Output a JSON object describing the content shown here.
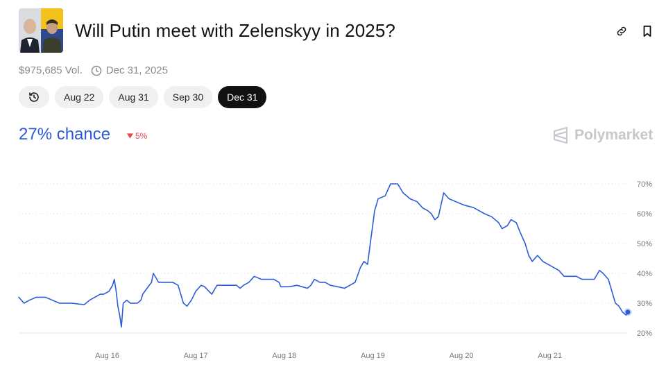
{
  "header": {
    "title": "Will Putin meet with Zelenskyy in 2025?",
    "avatar_icon": "putin-zelenskyy-photo",
    "link_icon": "link-icon",
    "bookmark_icon": "bookmark-icon"
  },
  "meta": {
    "volume": "$975,685 Vol.",
    "end_date": "Dec 31, 2025"
  },
  "tabs": [
    {
      "label": "Aug 22"
    },
    {
      "label": "Aug 31"
    },
    {
      "label": "Sep 30"
    },
    {
      "label": "Dec 31",
      "active": true
    }
  ],
  "summary": {
    "chance": "27% chance",
    "change": "5%",
    "change_direction": "down",
    "brand": "Polymarket"
  },
  "colors": {
    "line": "#2b5bd7",
    "negative": "#e5484d",
    "brand": "#c4c7cc"
  },
  "chart_data": {
    "type": "line",
    "x_ticks": [
      "Aug 16",
      "Aug 17",
      "Aug 18",
      "Aug 19",
      "Aug 20",
      "Aug 21"
    ],
    "x_range": [
      15.0,
      21.88
    ],
    "y_ticks": [
      "20%",
      "30%",
      "40%",
      "50%",
      "60%",
      "70%"
    ],
    "ylim": [
      20,
      70
    ],
    "grid": true,
    "series": [
      {
        "values": [
          [
            15.0,
            32
          ],
          [
            15.06,
            30
          ],
          [
            15.12,
            31
          ],
          [
            15.2,
            32
          ],
          [
            15.3,
            32
          ],
          [
            15.38,
            31
          ],
          [
            15.46,
            30
          ],
          [
            15.6,
            30
          ],
          [
            15.74,
            29.5
          ],
          [
            15.8,
            31
          ],
          [
            15.86,
            32
          ],
          [
            15.92,
            33
          ],
          [
            15.96,
            33
          ],
          [
            16.02,
            34
          ],
          [
            16.06,
            36
          ],
          [
            16.08,
            38
          ],
          [
            16.1,
            34
          ],
          [
            16.12,
            29
          ],
          [
            16.14,
            26
          ],
          [
            16.16,
            22
          ],
          [
            16.18,
            30
          ],
          [
            16.22,
            31
          ],
          [
            16.26,
            30
          ],
          [
            16.34,
            30
          ],
          [
            16.38,
            31
          ],
          [
            16.4,
            33
          ],
          [
            16.45,
            35
          ],
          [
            16.5,
            37
          ],
          [
            16.52,
            40
          ],
          [
            16.58,
            37
          ],
          [
            16.66,
            37
          ],
          [
            16.74,
            37
          ],
          [
            16.8,
            36
          ],
          [
            16.86,
            30
          ],
          [
            16.9,
            29
          ],
          [
            16.95,
            31
          ],
          [
            17.0,
            34
          ],
          [
            17.06,
            36
          ],
          [
            17.1,
            35.5
          ],
          [
            17.18,
            33
          ],
          [
            17.24,
            36
          ],
          [
            17.34,
            36
          ],
          [
            17.4,
            36
          ],
          [
            17.46,
            36
          ],
          [
            17.5,
            35
          ],
          [
            17.54,
            36
          ],
          [
            17.6,
            37
          ],
          [
            17.66,
            39
          ],
          [
            17.74,
            38
          ],
          [
            17.8,
            38
          ],
          [
            17.88,
            38
          ],
          [
            17.94,
            37
          ],
          [
            17.96,
            35.5
          ],
          [
            18.06,
            35.5
          ],
          [
            18.14,
            36
          ],
          [
            18.2,
            35.5
          ],
          [
            18.26,
            35
          ],
          [
            18.3,
            36
          ],
          [
            18.34,
            38
          ],
          [
            18.4,
            37
          ],
          [
            18.46,
            37
          ],
          [
            18.52,
            36
          ],
          [
            18.6,
            35.5
          ],
          [
            18.68,
            35
          ],
          [
            18.74,
            36
          ],
          [
            18.8,
            37
          ],
          [
            18.86,
            42
          ],
          [
            18.9,
            44
          ],
          [
            18.94,
            43
          ],
          [
            19.02,
            61
          ],
          [
            19.06,
            65
          ],
          [
            19.14,
            66
          ],
          [
            19.2,
            70
          ],
          [
            19.28,
            70
          ],
          [
            19.34,
            67
          ],
          [
            19.42,
            65
          ],
          [
            19.5,
            64
          ],
          [
            19.56,
            62
          ],
          [
            19.62,
            61
          ],
          [
            19.66,
            60
          ],
          [
            19.7,
            58
          ],
          [
            19.74,
            59
          ],
          [
            19.8,
            67
          ],
          [
            19.86,
            65
          ],
          [
            19.94,
            64
          ],
          [
            20.02,
            63
          ],
          [
            20.08,
            62.5
          ],
          [
            20.14,
            62
          ],
          [
            20.2,
            61
          ],
          [
            20.26,
            60
          ],
          [
            20.34,
            59
          ],
          [
            20.42,
            57
          ],
          [
            20.46,
            55
          ],
          [
            20.52,
            56
          ],
          [
            20.56,
            58
          ],
          [
            20.62,
            57
          ],
          [
            20.66,
            54
          ],
          [
            20.72,
            50
          ],
          [
            20.76,
            46
          ],
          [
            20.8,
            44
          ],
          [
            20.86,
            46
          ],
          [
            20.92,
            44
          ],
          [
            20.98,
            43
          ],
          [
            21.04,
            42
          ],
          [
            21.1,
            41
          ],
          [
            21.16,
            39
          ],
          [
            21.22,
            39
          ],
          [
            21.3,
            39
          ],
          [
            21.36,
            38
          ],
          [
            21.42,
            38
          ],
          [
            21.5,
            38
          ],
          [
            21.56,
            41
          ],
          [
            21.6,
            40
          ],
          [
            21.66,
            38
          ],
          [
            21.7,
            34
          ],
          [
            21.74,
            30
          ],
          [
            21.78,
            29
          ],
          [
            21.82,
            27
          ],
          [
            21.86,
            26
          ],
          [
            21.88,
            27
          ]
        ]
      }
    ]
  }
}
